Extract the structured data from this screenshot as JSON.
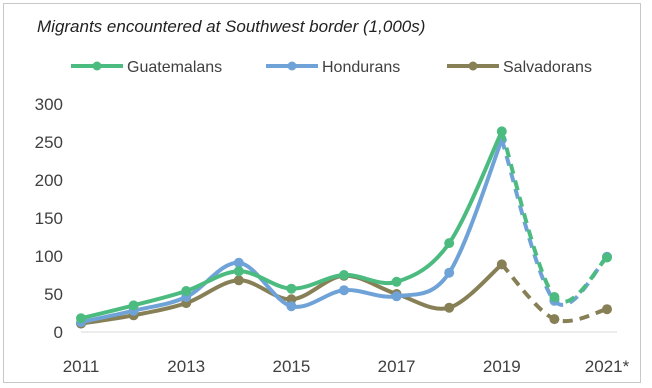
{
  "chart_data": {
    "type": "line",
    "title": "Migrants encountered at Southwest border (1,000s)",
    "xlabel": "",
    "ylabel": "",
    "x": [
      2011,
      2012,
      2013,
      2014,
      2015,
      2016,
      2017,
      2018,
      2019,
      2020,
      2021
    ],
    "x_tick_labels": [
      "2011",
      "2013",
      "2015",
      "2017",
      "2019",
      "2021*"
    ],
    "x_tick_values": [
      2011,
      2013,
      2015,
      2017,
      2019,
      2021
    ],
    "ylim": [
      0,
      300
    ],
    "y_ticks": [
      0,
      50,
      100,
      150,
      200,
      250,
      300
    ],
    "grid": false,
    "legend_position": "top",
    "solid_until": 2019,
    "series": [
      {
        "name": "Guatemalans",
        "color": "#4cbb7f",
        "values": [
          18,
          35,
          54,
          80,
          57,
          75,
          66,
          117,
          264,
          46,
          98
        ]
      },
      {
        "name": "Hondurans",
        "color": "#6fa3d8",
        "values": [
          13,
          28,
          46,
          91,
          34,
          55,
          47,
          78,
          253,
          41,
          99
        ]
      },
      {
        "name": "Salvadorans",
        "color": "#877f55",
        "values": [
          11,
          22,
          38,
          68,
          43,
          74,
          50,
          32,
          89,
          17,
          30
        ]
      }
    ]
  }
}
